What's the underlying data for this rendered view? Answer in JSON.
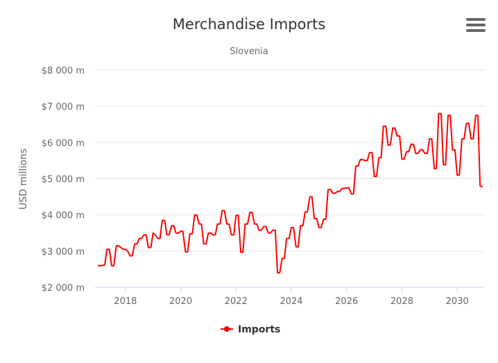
{
  "chart_data": {
    "type": "line",
    "title": "Merchandise Imports",
    "subtitle": "Slovenia",
    "ylabel": "USD millions",
    "xlabel": "",
    "ylim": [
      2000,
      8000
    ],
    "xlim": [
      2016.9,
      2031.0
    ],
    "y_ticks": [
      2000,
      3000,
      4000,
      5000,
      6000,
      7000,
      8000
    ],
    "y_tick_labels": [
      "$2 000 m",
      "$3 000 m",
      "$4 000 m",
      "$5 000 m",
      "$6 000 m",
      "$7 000 m",
      "$8 000 m"
    ],
    "x_ticks": [
      2018,
      2020,
      2022,
      2024,
      2026,
      2028,
      2030
    ],
    "x_tick_labels": [
      "2018",
      "2020",
      "2022",
      "2024",
      "2026",
      "2028",
      "2030"
    ],
    "grid": true,
    "legend_position": "bottom-center",
    "series": [
      {
        "name": "Imports",
        "color": "#ff0000",
        "x": [
          2017.0,
          2017.08,
          2017.17,
          2017.25,
          2017.33,
          2017.42,
          2017.5,
          2017.58,
          2017.67,
          2017.75,
          2017.83,
          2017.92,
          2018.0,
          2018.08,
          2018.17,
          2018.25,
          2018.33,
          2018.42,
          2018.5,
          2018.58,
          2018.67,
          2018.75,
          2018.83,
          2018.92,
          2019.0,
          2019.08,
          2019.17,
          2019.25,
          2019.33,
          2019.42,
          2019.5,
          2019.58,
          2019.67,
          2019.75,
          2019.83,
          2019.92,
          2020.0,
          2020.08,
          2020.17,
          2020.25,
          2020.33,
          2020.42,
          2020.5,
          2020.58,
          2020.67,
          2020.75,
          2020.83,
          2020.92,
          2021.0,
          2021.08,
          2021.17,
          2021.25,
          2021.33,
          2021.42,
          2021.5,
          2021.58,
          2021.67,
          2021.75,
          2021.83,
          2021.92,
          2022.0,
          2022.08,
          2022.17,
          2022.25,
          2022.33,
          2022.42,
          2022.5,
          2022.58,
          2022.67,
          2022.75,
          2022.83,
          2022.92,
          2023.0,
          2023.08,
          2023.17,
          2023.25,
          2023.33,
          2023.42,
          2023.5,
          2023.58,
          2023.67,
          2023.75,
          2023.83,
          2023.92,
          2024.0,
          2024.08,
          2024.17,
          2024.25,
          2024.33,
          2024.42,
          2024.5,
          2024.58,
          2024.67,
          2024.75,
          2024.83,
          2024.92,
          2025.0,
          2025.08,
          2025.17,
          2025.25,
          2025.33,
          2025.42,
          2025.5,
          2025.58,
          2025.67,
          2025.75,
          2025.83,
          2025.92,
          2026.0,
          2026.08,
          2026.17,
          2026.25,
          2026.33,
          2026.42,
          2026.5,
          2026.58,
          2026.67,
          2026.75,
          2026.83,
          2026.92,
          2027.0,
          2027.08,
          2027.17,
          2027.25,
          2027.33,
          2027.42,
          2027.5,
          2027.58,
          2027.67,
          2027.75,
          2027.83,
          2027.92,
          2028.0,
          2028.08,
          2028.17,
          2028.25,
          2028.33,
          2028.42,
          2028.5,
          2028.58,
          2028.67,
          2028.75,
          2028.83,
          2028.92,
          2029.0,
          2029.08,
          2029.17,
          2029.25,
          2029.33,
          2029.42,
          2029.5,
          2029.58,
          2029.67,
          2029.75,
          2029.83,
          2029.92,
          2030.0,
          2030.08,
          2030.17,
          2030.25,
          2030.33,
          2030.42,
          2030.5,
          2030.58,
          2030.67,
          2030.75,
          2030.83,
          2030.92
        ],
        "values": [
          2600,
          2600,
          2600,
          2620,
          3050,
          3050,
          2600,
          2600,
          3150,
          3150,
          3100,
          3050,
          3050,
          3000,
          2870,
          2870,
          3200,
          3200,
          3350,
          3350,
          3450,
          3450,
          3100,
          3100,
          3500,
          3450,
          3350,
          3350,
          3850,
          3850,
          3450,
          3450,
          3700,
          3700,
          3500,
          3500,
          3550,
          3550,
          2980,
          2980,
          3480,
          3480,
          4000,
          4000,
          3750,
          3750,
          3200,
          3200,
          3500,
          3500,
          3450,
          3450,
          3750,
          3750,
          4120,
          4120,
          3750,
          3750,
          3450,
          3450,
          3990,
          3990,
          2970,
          2970,
          3750,
          3750,
          4070,
          4070,
          3750,
          3750,
          3580,
          3580,
          3680,
          3680,
          3500,
          3500,
          3580,
          3580,
          2400,
          2400,
          2800,
          2800,
          3350,
          3350,
          3650,
          3650,
          3120,
          3120,
          3700,
          3700,
          4080,
          4080,
          4500,
          4500,
          3900,
          3900,
          3650,
          3650,
          3880,
          3880,
          4700,
          4700,
          4600,
          4600,
          4650,
          4650,
          4730,
          4730,
          4750,
          4750,
          4580,
          4580,
          5350,
          5350,
          5530,
          5530,
          5500,
          5500,
          5720,
          5720,
          5060,
          5060,
          5580,
          5580,
          6450,
          6450,
          5930,
          5930,
          6400,
          6400,
          6180,
          6180,
          5540,
          5540,
          5750,
          5750,
          5950,
          5950,
          5700,
          5700,
          5800,
          5800,
          5700,
          5700,
          6100,
          6100,
          5280,
          5280,
          6800,
          6800,
          5390,
          5390,
          6750,
          6750,
          5800,
          5800,
          5100,
          5100,
          6100,
          6100,
          6530,
          6530,
          6100,
          6100,
          6750,
          6750,
          4800,
          4780
        ]
      }
    ]
  }
}
